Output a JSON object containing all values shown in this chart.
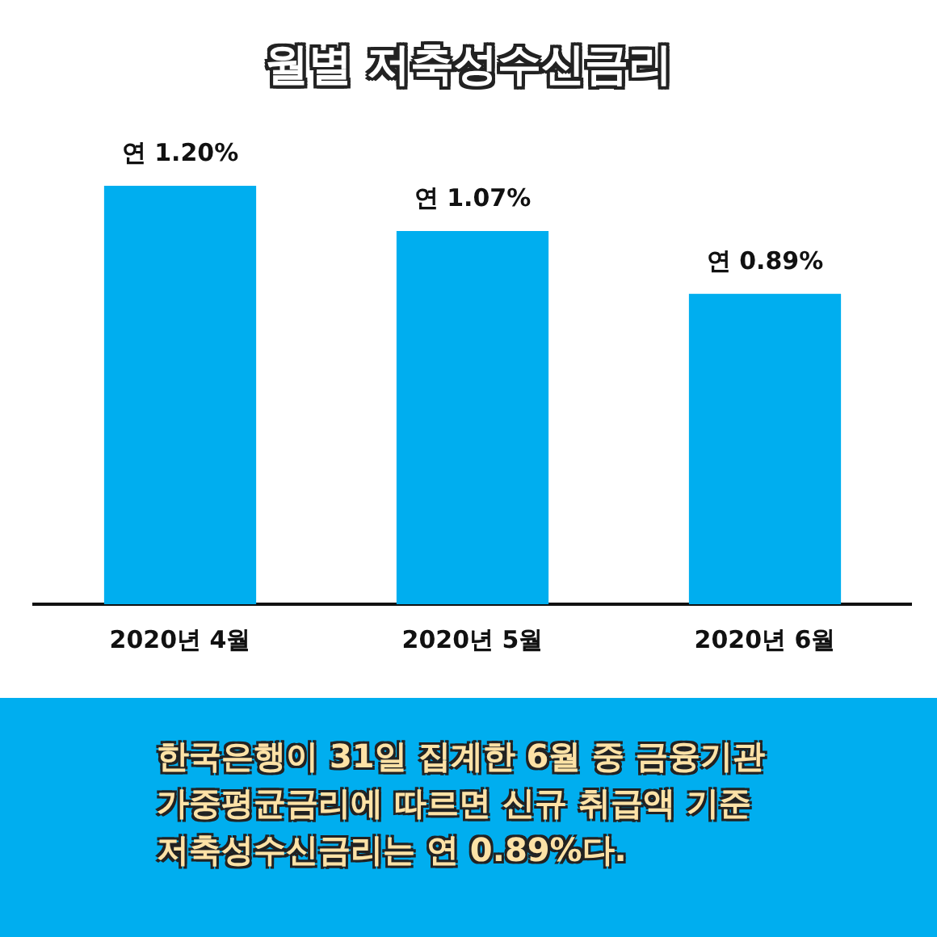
{
  "chart_data": {
    "type": "bar",
    "title": "월별 저축성수신금리",
    "categories": [
      "2020년 4월",
      "2020년 5월",
      "2020년 6월"
    ],
    "values": [
      1.2,
      1.07,
      0.89
    ],
    "value_labels": [
      "연 1.20%",
      "연 1.07%",
      "연 0.89%"
    ],
    "color": "#00aeef",
    "tick_labels": "x",
    "grid": false,
    "legend": false,
    "annotations": [
      "한국은행이 31일 집계한 6월 중 금융기관 가중평균금리에 따르면 신규 취급액 기준 저축성수신금리는 연 0.89%다."
    ]
  }
}
